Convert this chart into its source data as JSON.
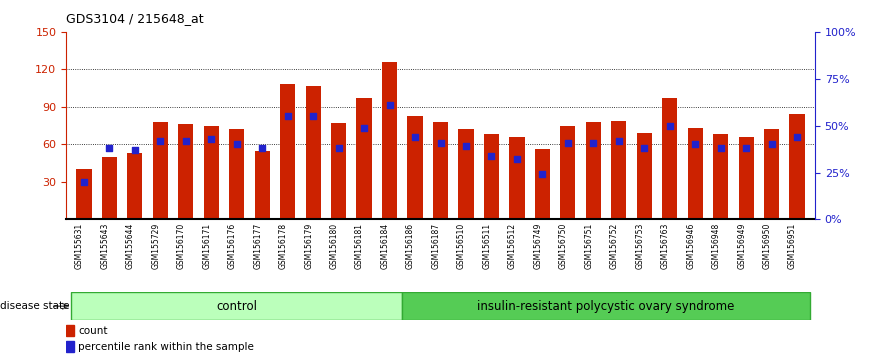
{
  "title": "GDS3104 / 215648_at",
  "samples": [
    "GSM155631",
    "GSM155643",
    "GSM155644",
    "GSM155729",
    "GSM156170",
    "GSM156171",
    "GSM156176",
    "GSM156177",
    "GSM156178",
    "GSM156179",
    "GSM156180",
    "GSM156181",
    "GSM156184",
    "GSM156186",
    "GSM156187",
    "GSM156510",
    "GSM156511",
    "GSM156512",
    "GSM156749",
    "GSM156750",
    "GSM156751",
    "GSM156752",
    "GSM156753",
    "GSM156763",
    "GSM156946",
    "GSM156948",
    "GSM156949",
    "GSM156950",
    "GSM156951"
  ],
  "counts": [
    40,
    50,
    53,
    78,
    76,
    75,
    72,
    55,
    108,
    107,
    77,
    97,
    126,
    83,
    78,
    72,
    68,
    66,
    56,
    75,
    78,
    79,
    69,
    97,
    73,
    68,
    66,
    72,
    84
  ],
  "percentile_ranks": [
    20,
    38,
    37,
    42,
    42,
    43,
    40,
    38,
    55,
    55,
    38,
    49,
    61,
    44,
    41,
    39,
    34,
    32,
    24,
    41,
    41,
    42,
    38,
    50,
    40,
    38,
    38,
    40,
    44
  ],
  "control_count": 13,
  "disease_count": 16,
  "bar_color": "#cc2200",
  "dot_color": "#2222cc",
  "tick_bg_color": "#cccccc",
  "plot_bg_color": "#ffffff",
  "control_label": "control",
  "disease_label": "insulin-resistant polycystic ovary syndrome",
  "control_band_color": "#bbffbb",
  "disease_band_color": "#55cc55",
  "ylim_left": [
    0,
    150
  ],
  "ylim_right": [
    0,
    100
  ],
  "yticks_left": [
    30,
    60,
    90,
    120,
    150
  ],
  "yticks_right": [
    0,
    25,
    50,
    75,
    100
  ],
  "ytick_labels_right": [
    "0%",
    "25%",
    "50%",
    "75%",
    "100%"
  ]
}
